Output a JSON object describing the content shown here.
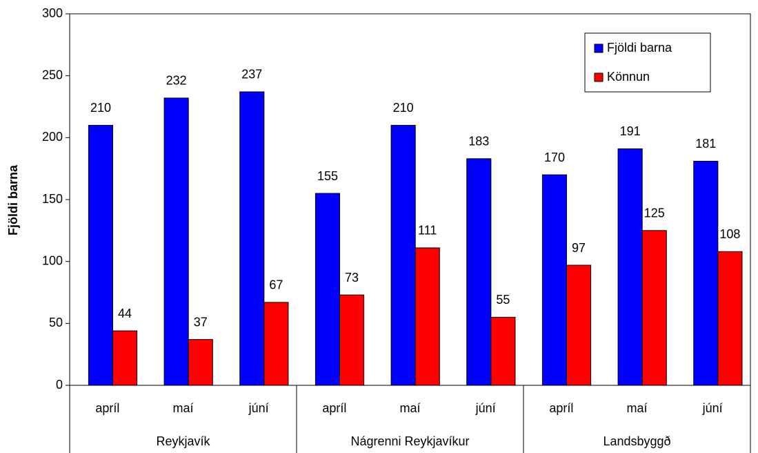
{
  "chart_data": {
    "type": "bar",
    "y_label": "Fjöldi barna",
    "groups": [
      {
        "name": "Reykjavík",
        "categories": [
          "apríl",
          "maí",
          "júní"
        ]
      },
      {
        "name": "Nágrenni Reykjavíkur",
        "categories": [
          "apríl",
          "maí",
          "júní"
        ]
      },
      {
        "name": "Landsbyggð",
        "categories": [
          "apríl",
          "maí",
          "júní"
        ]
      }
    ],
    "series": [
      {
        "name": "Fjöldi barna",
        "color": "#0000ff",
        "values": [
          210,
          232,
          237,
          155,
          210,
          183,
          170,
          191,
          181
        ]
      },
      {
        "name": "Könnun",
        "color": "#ff0000",
        "values": [
          44,
          37,
          67,
          73,
          111,
          55,
          97,
          125,
          108
        ]
      }
    ],
    "ylim": [
      0,
      300
    ],
    "yticks": [
      0,
      50,
      100,
      150,
      200,
      250,
      300
    ],
    "legend": "top-right"
  }
}
